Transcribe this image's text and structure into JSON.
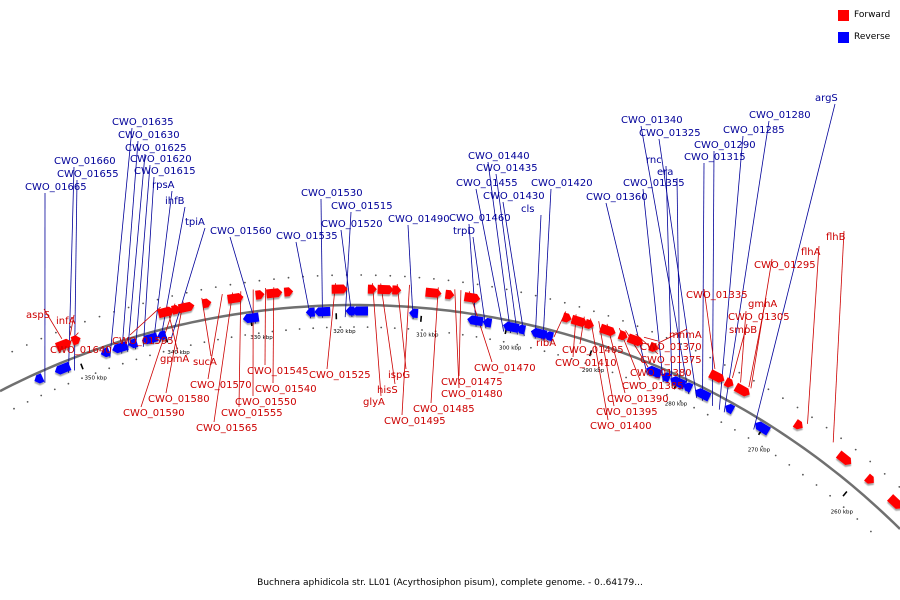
{
  "caption": "Buchnera aphidicola str. LL01 (Acyrthosiphon pisum), complete genome. - 0..64179...",
  "legend": [
    {
      "label": "Forward",
      "color": "#ff0000"
    },
    {
      "label": "Reverse",
      "color": "#0000ff"
    }
  ],
  "colors": {
    "forward": "#ff0000",
    "reverse": "#0000ff",
    "backbone": "#707070",
    "forward_label": "#cc0000",
    "reverse_label": "#000099"
  },
  "ticks": [
    {
      "label": "350 kbp",
      "kbp": 350
    },
    {
      "label": "340 kbp",
      "kbp": 340
    },
    {
      "label": "330 kbp",
      "kbp": 330
    },
    {
      "label": "320 kbp",
      "kbp": 320
    },
    {
      "label": "310 kbp",
      "kbp": 310
    },
    {
      "label": "300 kbp",
      "kbp": 300
    },
    {
      "label": "290 kbp",
      "kbp": 290
    },
    {
      "label": "280 kbp",
      "kbp": 280
    },
    {
      "label": "270 kbp",
      "kbp": 270
    },
    {
      "label": "260 kbp",
      "kbp": 260
    }
  ],
  "forward_genes": [
    "aspS",
    "infA",
    "CWO_01640",
    "CWO_01595",
    "gpmA",
    "CWO_01590",
    "CWO_01580",
    "sucA",
    "CWO_01570",
    "CWO_01565",
    "CWO_01555",
    "CWO_01550",
    "CWO_01545",
    "CWO_01540",
    "CWO_01525",
    "glyA",
    "hisS",
    "ispG",
    "CWO_01495",
    "CWO_01485",
    "CWO_01480",
    "CWO_01475",
    "CWO_01470",
    "ribA",
    "CWO_01410",
    "CWO_01405",
    "CWO_01400",
    "CWO_01395",
    "CWO_01390",
    "CWO_01385",
    "CWO_01380",
    "CWO_01375",
    "CWO_01370",
    "mnmA",
    "CWO_01335",
    "smpB",
    "CWO_01305",
    "gmhA",
    "CWO_01295",
    "flhA",
    "flhB"
  ],
  "reverse_genes": [
    "CWO_01665",
    "CWO_01660",
    "CWO_01655",
    "CWO_01635",
    "CWO_01630",
    "CWO_01625",
    "CWO_01620",
    "CWO_01615",
    "rpsA",
    "ihfB",
    "tpiA",
    "CWO_01560",
    "CWO_01535",
    "CWO_01530",
    "CWO_01515",
    "CWO_01520",
    "CWO_01490",
    "CWO_01460",
    "trpD",
    "CWO_01455",
    "CWO_01440",
    "CWO_01435",
    "CWO_01430",
    "cls",
    "CWO_01420",
    "CWO_01360",
    "CWO_01355",
    "rnc",
    "era",
    "CWO_01340",
    "CWO_01325",
    "CWO_01315",
    "CWO_01290",
    "CWO_01285",
    "CWO_01280",
    "argS"
  ]
}
